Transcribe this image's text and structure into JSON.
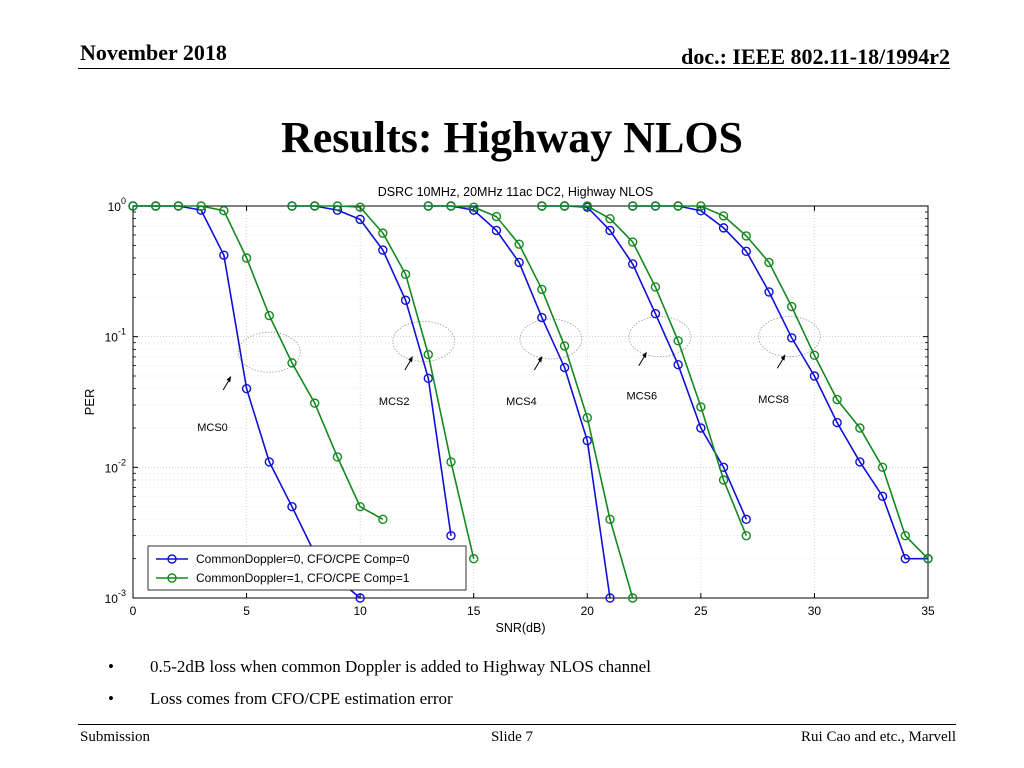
{
  "header": {
    "date": "November 2018",
    "doc_id": "doc.: IEEE 802.11-18/1994r2"
  },
  "slide": {
    "title": "Results: Highway NLOS",
    "bullets": [
      "0.5-2dB loss when common Doppler is added to Highway NLOS channel",
      "Loss comes from CFO/CPE estimation error"
    ],
    "bullet_symbol": "•"
  },
  "footer": {
    "left": "Submission",
    "center": "Slide 7",
    "right": "Rui Cao and etc., Marvell"
  },
  "chart_data": {
    "type": "line",
    "title": "DSRC 10MHz, 20MHz 11ac DC2, Highway NLOS",
    "xlabel": "SNR(dB)",
    "ylabel": "PER",
    "xlim": [
      0,
      35
    ],
    "ylim": [
      0.001,
      1
    ],
    "yscale": "log",
    "xticks": [
      0,
      5,
      10,
      15,
      20,
      25,
      30,
      35
    ],
    "ytick_labels": [
      {
        "value": 1,
        "base": "10",
        "exp": "0"
      },
      {
        "value": 0.1,
        "base": "10",
        "exp": "-1"
      },
      {
        "value": 0.01,
        "base": "10",
        "exp": "-2"
      },
      {
        "value": 0.001,
        "base": "10",
        "exp": "-3"
      }
    ],
    "grid": true,
    "legend_position": "bottom-left",
    "legend": [
      {
        "name": "CommonDoppler=0, CFO/CPE Comp=0",
        "color": "#1010d8"
      },
      {
        "name": "CommonDoppler=1, CFO/CPE Comp=1",
        "color": "#14891e"
      }
    ],
    "series": [
      {
        "group": 0,
        "color": "#1010d8",
        "points": [
          [
            0,
            1
          ],
          [
            1,
            1
          ],
          [
            2,
            1
          ],
          [
            3,
            0.93
          ],
          [
            4,
            0.42
          ],
          [
            5,
            0.04
          ],
          [
            6,
            0.011
          ],
          [
            7,
            0.005
          ],
          [
            8,
            0.0022
          ],
          [
            9,
            0.0014
          ],
          [
            10,
            0.001
          ]
        ]
      },
      {
        "group": 1,
        "color": "#14891e",
        "points": [
          [
            0,
            1
          ],
          [
            1,
            1
          ],
          [
            2,
            1
          ],
          [
            3,
            1
          ],
          [
            4,
            0.92
          ],
          [
            5,
            0.4
          ],
          [
            6,
            0.145
          ],
          [
            7,
            0.063
          ],
          [
            8,
            0.031
          ],
          [
            9,
            0.012
          ],
          [
            10,
            0.005
          ],
          [
            11,
            0.004
          ]
        ]
      },
      {
        "group": 0,
        "color": "#1010d8",
        "points": [
          [
            7,
            1
          ],
          [
            8,
            1
          ],
          [
            9,
            0.93
          ],
          [
            10,
            0.79
          ],
          [
            11,
            0.46
          ],
          [
            12,
            0.19
          ],
          [
            13,
            0.048
          ],
          [
            14,
            0.003
          ]
        ]
      },
      {
        "group": 1,
        "color": "#14891e",
        "points": [
          [
            7,
            1
          ],
          [
            8,
            1
          ],
          [
            9,
            1
          ],
          [
            10,
            0.98
          ],
          [
            11,
            0.62
          ],
          [
            12,
            0.3
          ],
          [
            13,
            0.073
          ],
          [
            14,
            0.011
          ],
          [
            15,
            0.002
          ]
        ]
      },
      {
        "group": 0,
        "color": "#1010d8",
        "points": [
          [
            13,
            1
          ],
          [
            14,
            1
          ],
          [
            15,
            0.93
          ],
          [
            16,
            0.65
          ],
          [
            17,
            0.37
          ],
          [
            18,
            0.14
          ],
          [
            19,
            0.058
          ],
          [
            20,
            0.016
          ],
          [
            21,
            0.001
          ]
        ]
      },
      {
        "group": 1,
        "color": "#14891e",
        "points": [
          [
            13,
            1
          ],
          [
            14,
            1
          ],
          [
            15,
            0.98
          ],
          [
            16,
            0.83
          ],
          [
            17,
            0.51
          ],
          [
            18,
            0.23
          ],
          [
            19,
            0.085
          ],
          [
            20,
            0.024
          ],
          [
            21,
            0.004
          ],
          [
            22,
            0.001
          ]
        ]
      },
      {
        "group": 0,
        "color": "#1010d8",
        "points": [
          [
            18,
            1
          ],
          [
            19,
            1
          ],
          [
            20,
            0.98
          ],
          [
            21,
            0.65
          ],
          [
            22,
            0.36
          ],
          [
            23,
            0.15
          ],
          [
            24,
            0.061
          ],
          [
            25,
            0.02
          ],
          [
            26,
            0.01
          ],
          [
            27,
            0.004
          ]
        ]
      },
      {
        "group": 1,
        "color": "#14891e",
        "points": [
          [
            18,
            1
          ],
          [
            19,
            1
          ],
          [
            20,
            1
          ],
          [
            21,
            0.8
          ],
          [
            22,
            0.53
          ],
          [
            23,
            0.24
          ],
          [
            24,
            0.093
          ],
          [
            25,
            0.029
          ],
          [
            26,
            0.008
          ],
          [
            27,
            0.003
          ]
        ]
      },
      {
        "group": 0,
        "color": "#1010d8",
        "points": [
          [
            22,
            1
          ],
          [
            23,
            1
          ],
          [
            24,
            1
          ],
          [
            25,
            0.92
          ],
          [
            26,
            0.68
          ],
          [
            27,
            0.45
          ],
          [
            28,
            0.22
          ],
          [
            29,
            0.098
          ],
          [
            30,
            0.05
          ],
          [
            31,
            0.022
          ],
          [
            32,
            0.011
          ],
          [
            33,
            0.006
          ],
          [
            34,
            0.002
          ],
          [
            35,
            0.002
          ]
        ]
      },
      {
        "group": 1,
        "color": "#14891e",
        "points": [
          [
            22,
            1
          ],
          [
            23,
            1
          ],
          [
            24,
            1
          ],
          [
            25,
            1
          ],
          [
            26,
            0.84
          ],
          [
            27,
            0.59
          ],
          [
            28,
            0.37
          ],
          [
            29,
            0.17
          ],
          [
            30,
            0.072
          ],
          [
            31,
            0.033
          ],
          [
            32,
            0.02
          ],
          [
            33,
            0.01
          ],
          [
            34,
            0.003
          ],
          [
            35,
            0.002
          ]
        ]
      }
    ],
    "annotations": [
      {
        "label": "MCS0",
        "ellipse": [
          6,
          0.076
        ],
        "arrow": [
          4.1,
          0.045
        ],
        "label_at": [
          3.5,
          0.019
        ]
      },
      {
        "label": "MCS2",
        "ellipse": [
          12.8,
          0.092
        ],
        "arrow": [
          12.1,
          0.064
        ],
        "label_at": [
          11.5,
          0.03
        ]
      },
      {
        "label": "MCS4",
        "ellipse": [
          18.4,
          0.096
        ],
        "arrow": [
          17.8,
          0.064
        ],
        "label_at": [
          17.1,
          0.03
        ]
      },
      {
        "label": "MCS6",
        "ellipse": [
          23.2,
          0.1
        ],
        "arrow": [
          22.4,
          0.069
        ],
        "label_at": [
          22.4,
          0.033
        ]
      },
      {
        "label": "MCS8",
        "ellipse": [
          28.9,
          0.1
        ],
        "arrow": [
          28.5,
          0.066
        ],
        "label_at": [
          28.2,
          0.031
        ]
      }
    ]
  }
}
